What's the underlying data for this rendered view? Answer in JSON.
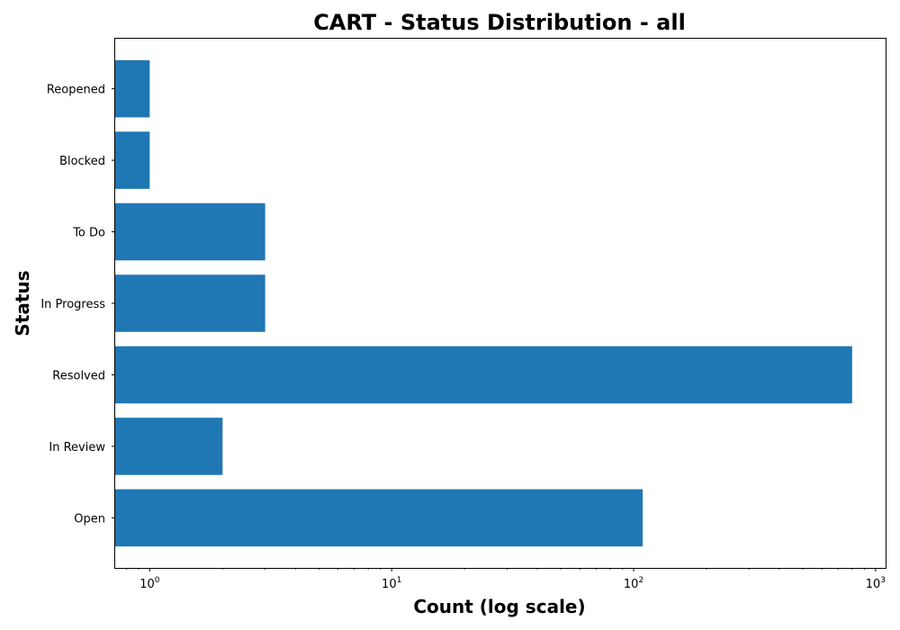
{
  "chart_data": {
    "type": "bar",
    "orientation": "horizontal",
    "title": "CART - Status Distribution - all",
    "xlabel": "Count (log scale)",
    "ylabel": "Status",
    "x_scale": "log",
    "xlim": [
      0.72,
      1100
    ],
    "x_ticks": [
      {
        "value": 1,
        "base": "10",
        "exp": "0"
      },
      {
        "value": 10,
        "base": "10",
        "exp": "1"
      },
      {
        "value": 100,
        "base": "10",
        "exp": "2"
      },
      {
        "value": 1000,
        "base": "10",
        "exp": "3"
      }
    ],
    "categories": [
      "Open",
      "In Review",
      "Resolved",
      "In Progress",
      "To Do",
      "Blocked",
      "Reopened"
    ],
    "values": [
      109,
      2,
      800,
      3,
      3,
      1,
      1
    ],
    "grid": false,
    "colors": {
      "bar": "#1f77b4",
      "axis": "#000000",
      "background": "#ffffff"
    }
  }
}
